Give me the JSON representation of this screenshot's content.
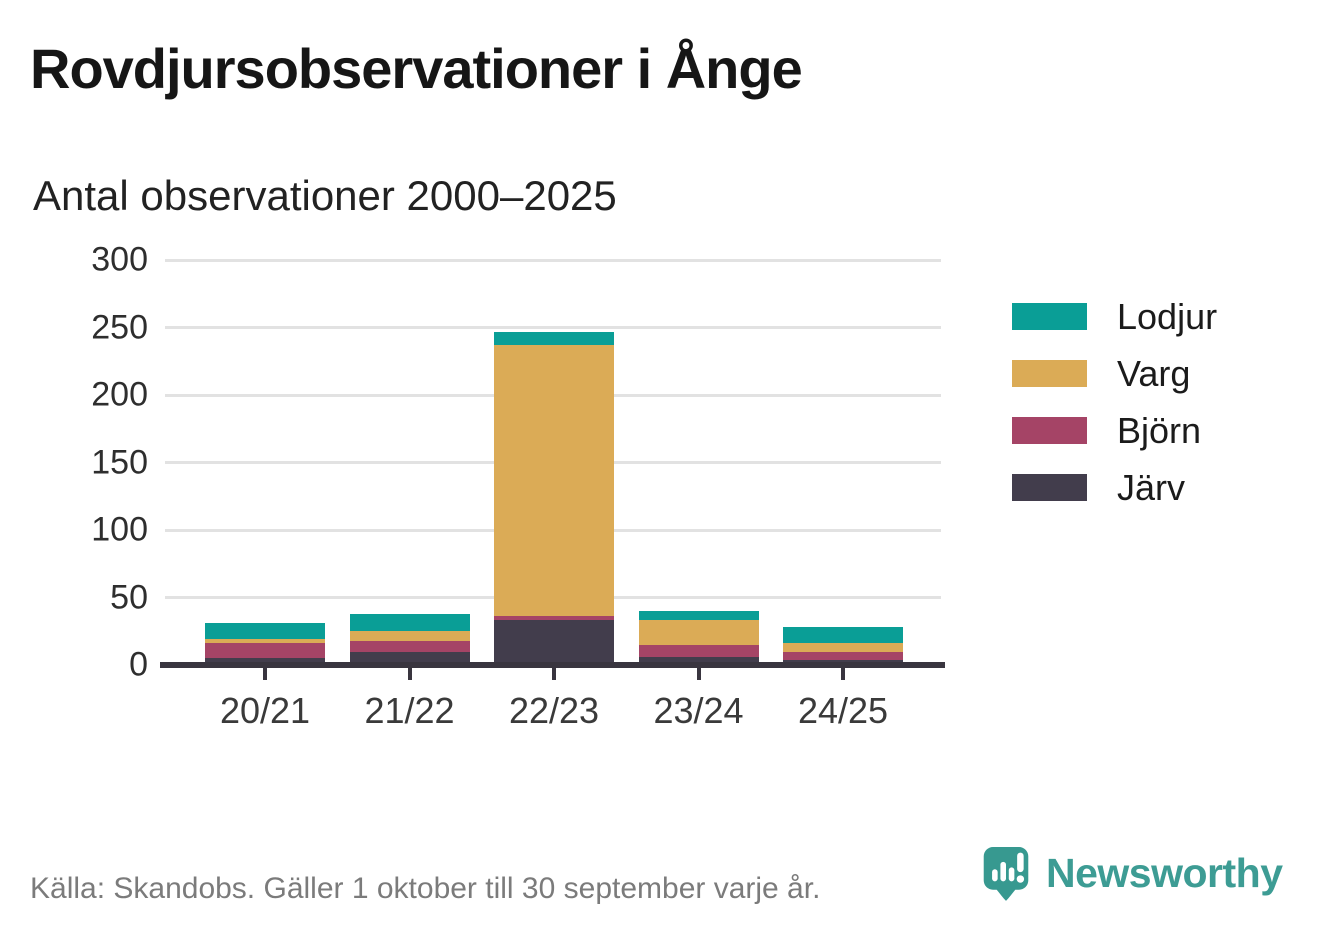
{
  "header": {
    "title": "Rovdjursobservationer i Ånge",
    "subtitle": "Antal observationer 2000–2025"
  },
  "chart_data": {
    "type": "bar",
    "stacked": true,
    "title": "Rovdjursobservationer i Ånge",
    "subtitle": "Antal observationer 2000–2025",
    "xlabel": "",
    "ylabel": "",
    "ylim": [
      0,
      300
    ],
    "yticks": [
      0,
      50,
      100,
      150,
      200,
      250,
      300
    ],
    "grid": "horizontal",
    "categories": [
      "20/21",
      "21/22",
      "22/23",
      "23/24",
      "24/25"
    ],
    "series": [
      {
        "name": "Järv",
        "color": "#423D4C",
        "values": [
          5,
          10,
          33,
          6,
          4
        ]
      },
      {
        "name": "Björn",
        "color": "#A54466",
        "values": [
          11,
          8,
          3,
          9,
          6
        ]
      },
      {
        "name": "Varg",
        "color": "#DBAB56",
        "values": [
          3,
          7,
          201,
          18,
          6
        ]
      },
      {
        "name": "Lodjur",
        "color": "#0A9E96",
        "values": [
          12,
          13,
          10,
          7,
          12
        ]
      }
    ],
    "stack_order_bottom_to_top": [
      "Järv",
      "Björn",
      "Varg",
      "Lodjur"
    ],
    "legend": {
      "position": "right",
      "order_top_to_bottom": [
        "Lodjur",
        "Varg",
        "Björn",
        "Järv"
      ]
    }
  },
  "footer": {
    "source": "Källa: Skandobs. Gäller 1 oktober till 30 september varje år.",
    "brand": {
      "name": "Newsworthy",
      "color": "#3D9C94",
      "icon": "newsworthy-speech-bubble-chart-icon"
    }
  },
  "colors": {
    "axis": "#39353F",
    "grid": "#E2E2E2",
    "title_text": "#161616",
    "tick_text": "#3a3a3a",
    "source_text": "#7b7b7b"
  }
}
